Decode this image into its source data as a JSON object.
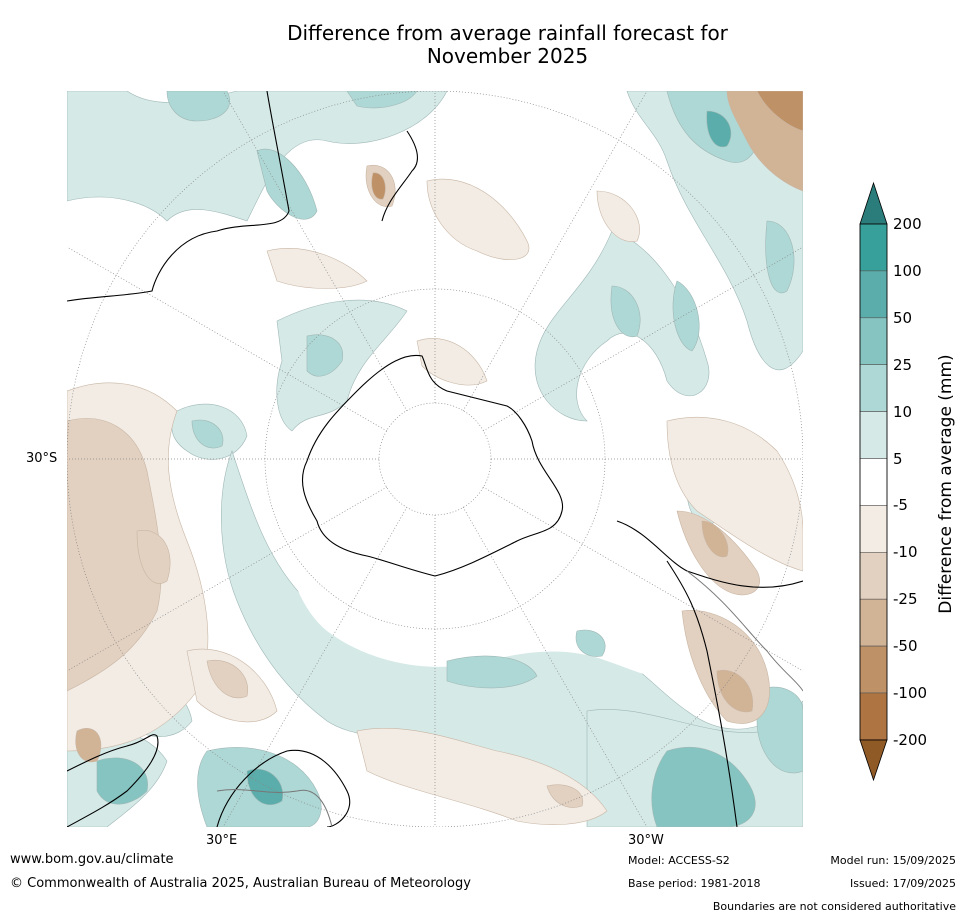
{
  "title_line1": "Difference from average rainfall forecast for",
  "title_line2": "November 2025",
  "map": {
    "projection": "south-polar-stereographic",
    "lat_label": "30°S",
    "lon_labels": [
      "30°E",
      "30°W"
    ]
  },
  "colorbar": {
    "title": "Difference from average (mm)",
    "levels": [
      "200",
      "100",
      "50",
      "25",
      "10",
      "5",
      "-5",
      "-10",
      "-25",
      "-50",
      "-100",
      "-200"
    ],
    "colors": {
      "gt200": "#2a7d7b",
      "100_200": "#37a09a",
      "50_100": "#5aadaa",
      "25_50": "#85c4c0",
      "10_25": "#aed8d5",
      "5_10": "#d5e9e7",
      "neutral": "#ffffff",
      "-10_-5": "#f2ece5",
      "-25_-10": "#e2d0c0",
      "-50_-25": "#d1b396",
      "-100_-50": "#bf9166",
      "-200_-100": "#ae7542",
      "lt-200": "#8f5a26"
    }
  },
  "footer": {
    "url": "www.bom.gov.au/climate",
    "copyright": "© Commonwealth of Australia 2025, Australian Bureau of Meteorology",
    "model": "Model: ACCESS-S2",
    "base_period": "Base period: 1981-2018",
    "model_run": "Model run: 15/09/2025",
    "issued": "Issued: 17/09/2025",
    "disclaimer": "Boundaries are not considered authoritative"
  }
}
